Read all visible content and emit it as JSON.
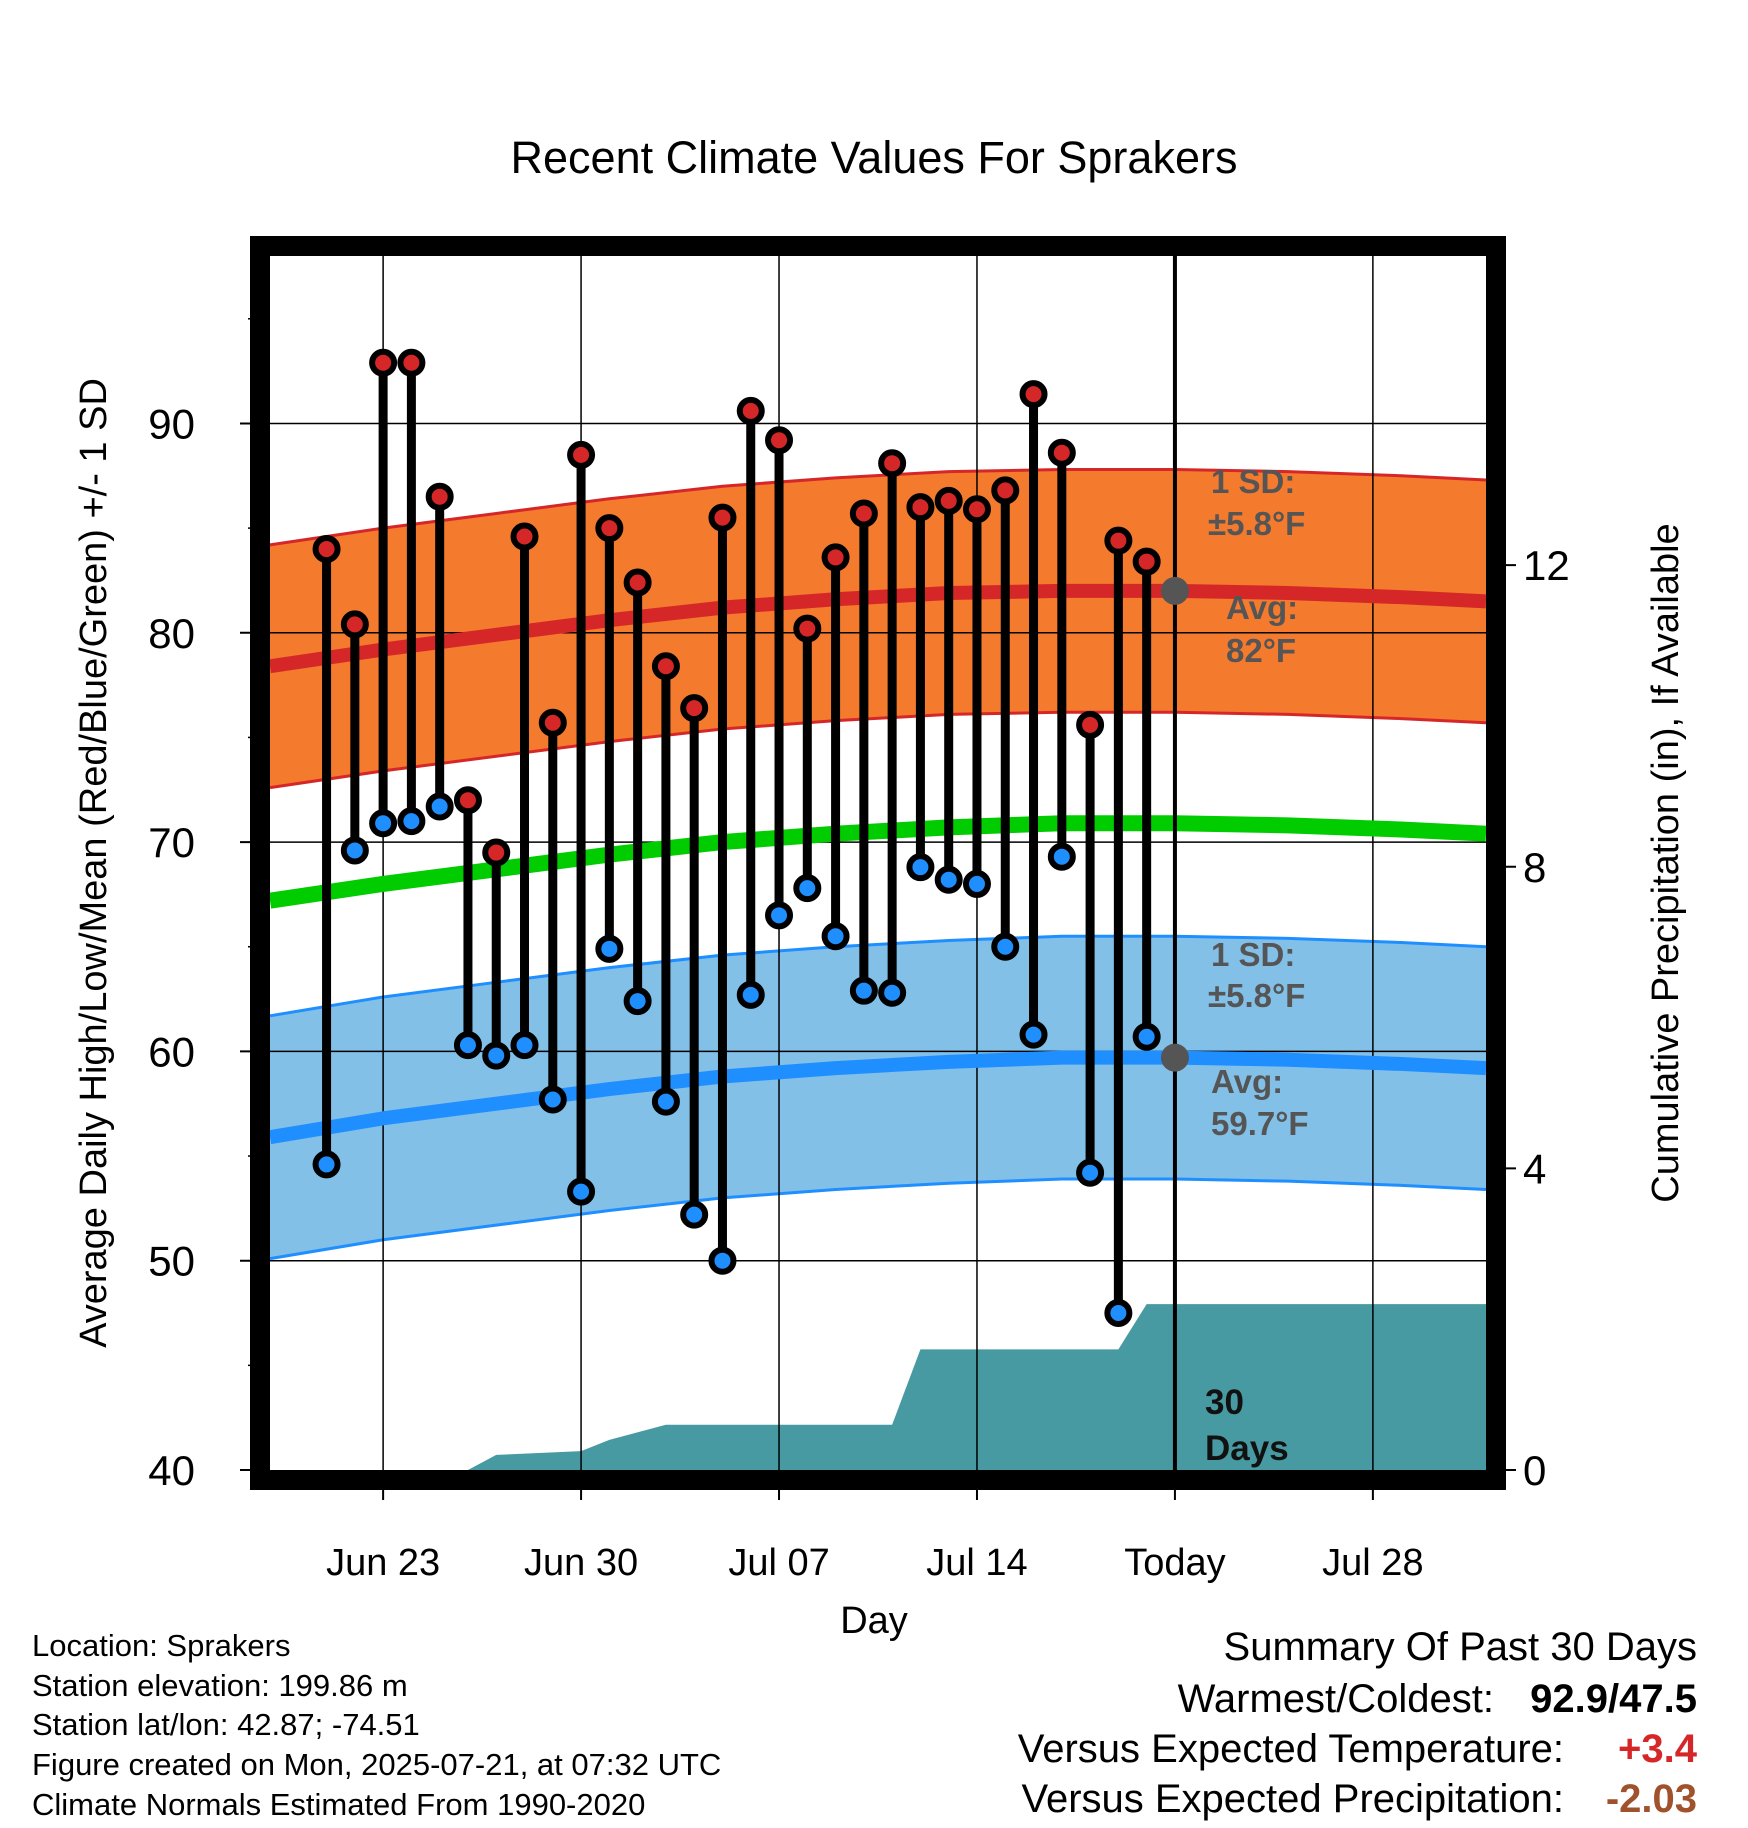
{
  "chart_data": {
    "type": "line",
    "title": "Recent Climate Values For Sprakers",
    "xlabel": "Day",
    "ylabel": "Average Daily High/Low/Mean (Red/Blue/Green) +/- 1 SD",
    "y2label": "Cumulative Precipitation (in), If Available",
    "ylim": [
      40,
      98
    ],
    "y2lim": [
      0,
      16.1
    ],
    "yticks": [
      40,
      50,
      60,
      70,
      80,
      90
    ],
    "y2ticks": [
      0,
      4,
      8,
      12
    ],
    "x_tick_labels": [
      "Jun 23",
      "Jun 30",
      "Jul 07",
      "Jul 14",
      "Today",
      "Jul 28"
    ],
    "x_ticks": [
      "2025-06-23",
      "2025-06-30",
      "2025-07-07",
      "2025-07-14",
      "2025-07-21",
      "2025-07-28"
    ],
    "xlim": [
      "2025-06-19",
      "2025-08-01"
    ],
    "today": "2025-07-21",
    "dates": [
      "2025-06-21",
      "2025-06-22",
      "2025-06-23",
      "2025-06-24",
      "2025-06-25",
      "2025-06-26",
      "2025-06-27",
      "2025-06-28",
      "2025-06-29",
      "2025-06-30",
      "2025-07-01",
      "2025-07-02",
      "2025-07-03",
      "2025-07-04",
      "2025-07-05",
      "2025-07-06",
      "2025-07-07",
      "2025-07-08",
      "2025-07-09",
      "2025-07-10",
      "2025-07-11",
      "2025-07-12",
      "2025-07-13",
      "2025-07-14",
      "2025-07-15",
      "2025-07-16",
      "2025-07-17",
      "2025-07-18",
      "2025-07-19",
      "2025-07-20"
    ],
    "series": [
      {
        "name": "Daily High",
        "color": "#d62728",
        "values": [
          84.0,
          80.4,
          92.9,
          92.9,
          86.5,
          72.0,
          69.5,
          84.6,
          75.7,
          88.5,
          85.0,
          82.4,
          78.4,
          76.4,
          85.5,
          90.6,
          89.2,
          80.2,
          83.6,
          85.7,
          88.1,
          86.0,
          86.3,
          85.9,
          86.8,
          91.4,
          88.6,
          75.6,
          84.4,
          83.4
        ]
      },
      {
        "name": "Daily Low",
        "color": "#1f8fff",
        "values": [
          54.6,
          69.6,
          70.9,
          71.0,
          71.7,
          60.3,
          59.8,
          60.3,
          57.7,
          53.3,
          64.9,
          62.4,
          57.6,
          52.2,
          50.0,
          62.7,
          66.5,
          67.8,
          65.5,
          62.9,
          62.8,
          68.8,
          68.2,
          68.0,
          65.0,
          60.8,
          69.3,
          54.2,
          47.5,
          60.7
        ]
      }
    ],
    "normals": {
      "dates": [
        "2025-06-19",
        "2025-06-23",
        "2025-06-27",
        "2025-07-01",
        "2025-07-05",
        "2025-07-09",
        "2025-07-13",
        "2025-07-17",
        "2025-07-21",
        "2025-07-25",
        "2025-07-29",
        "2025-08-01"
      ],
      "high_mean": [
        78.4,
        79.2,
        79.9,
        80.6,
        81.2,
        81.6,
        81.9,
        82.0,
        82.0,
        81.9,
        81.7,
        81.5
      ],
      "high_sd": 5.8,
      "low_mean": [
        55.9,
        56.8,
        57.5,
        58.2,
        58.8,
        59.2,
        59.5,
        59.7,
        59.7,
        59.6,
        59.4,
        59.2
      ],
      "low_sd": 5.8,
      "daily_mean": [
        67.2,
        68.0,
        68.7,
        69.4,
        70.0,
        70.4,
        70.7,
        70.9,
        70.9,
        70.8,
        70.6,
        70.4
      ]
    },
    "precip": {
      "name": "Cumulative Precipitation",
      "color": "#479aa1",
      "dates": [
        "2025-06-19",
        "2025-06-26",
        "2025-06-27",
        "2025-06-30",
        "2025-07-01",
        "2025-07-03",
        "2025-07-11",
        "2025-07-12",
        "2025-07-19",
        "2025-07-20",
        "2025-08-01"
      ],
      "values": [
        0,
        0,
        0.2,
        0.25,
        0.4,
        0.6,
        0.6,
        1.6,
        1.6,
        2.2,
        2.2
      ],
      "label_line1": "30",
      "label_line2": "Days"
    },
    "annotations": {
      "high_sd_line1": "1 SD:",
      "high_sd_line2": "±5.8°F",
      "high_avg_line1": "Avg:",
      "high_avg_line2": "82°F",
      "high_avg_value": 82,
      "low_sd_line1": "1 SD:",
      "low_sd_line2": "±5.8°F",
      "low_avg_line1": "Avg:",
      "low_avg_line2": "59.7°F",
      "low_avg_value": 59.7
    },
    "grid": true
  },
  "info": {
    "location": "Location: Sprakers",
    "elevation": "Station elevation: 199.86 m",
    "latlon": "Station lat/lon: 42.87; -74.51",
    "created": "Figure created on Mon, 2025-07-21, at 07:32 UTC",
    "normals": "Climate Normals Estimated From 1990-2020"
  },
  "summary": {
    "heading": "Summary Of Past 30 Days",
    "warmest_label": "Warmest/Coldest:",
    "warmest_value": "92.9/47.5",
    "temp_label": "Versus Expected Temperature:",
    "temp_value": "+3.4",
    "temp_color": "#d62728",
    "precip_label": "Versus Expected Precipitation:",
    "precip_value": "-2.03",
    "precip_color": "#a0522d"
  },
  "colors": {
    "high_band": "#f47a2e",
    "high_line": "#d62728",
    "low_band": "#82c0e8",
    "low_line": "#1f8fff",
    "mean_line": "#00cc00",
    "frame": "#000000",
    "annotation": "#555555"
  }
}
